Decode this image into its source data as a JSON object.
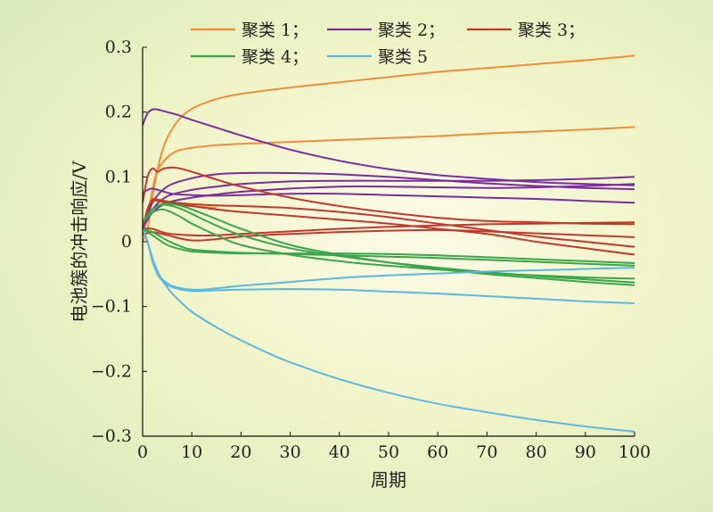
{
  "chart_data": {
    "type": "line",
    "title": "",
    "xlabel": "周期",
    "ylabel": "电池簇的冲击响应/V",
    "xlim": [
      0,
      100
    ],
    "ylim": [
      -0.3,
      0.3
    ],
    "x_ticks": [
      0,
      10,
      20,
      30,
      40,
      50,
      60,
      70,
      80,
      90,
      100
    ],
    "y_ticks": [
      -0.3,
      -0.2,
      -0.1,
      0,
      0.1,
      0.2,
      0.3
    ],
    "y_tick_labels": [
      "−0.3",
      "−0.2",
      "−0.1",
      "0",
      "0.1",
      "0.2",
      "0.3"
    ],
    "grid": false,
    "legend_position": "top",
    "legend": [
      {
        "label": "聚类 1；",
        "color": "#f28c3a"
      },
      {
        "label": "聚类 2；",
        "color": "#7a2e9e"
      },
      {
        "label": "聚类 3；",
        "color": "#c2382b"
      },
      {
        "label": "聚类 4；",
        "color": "#3aa64a"
      },
      {
        "label": "聚类 5",
        "color": "#5bb8e0"
      }
    ],
    "series": [
      {
        "cluster": 1,
        "color": "#f28c3a",
        "x": [
          0,
          1,
          2,
          3,
          4,
          5,
          7,
          10,
          15,
          20,
          30,
          40,
          50,
          60,
          70,
          80,
          90,
          100
        ],
        "y": [
          0,
          0.02,
          0.07,
          0.11,
          0.14,
          0.16,
          0.185,
          0.205,
          0.22,
          0.228,
          0.238,
          0.246,
          0.254,
          0.262,
          0.268,
          0.274,
          0.28,
          0.287
        ]
      },
      {
        "cluster": 1,
        "color": "#f28c3a",
        "x": [
          0,
          1,
          2,
          3,
          5,
          7,
          10,
          15,
          20,
          30,
          40,
          50,
          60,
          70,
          80,
          90,
          100
        ],
        "y": [
          0.01,
          0.04,
          0.08,
          0.11,
          0.13,
          0.14,
          0.145,
          0.149,
          0.151,
          0.154,
          0.157,
          0.16,
          0.163,
          0.167,
          0.17,
          0.173,
          0.177
        ]
      },
      {
        "cluster": 1,
        "color": "#f28c3a",
        "x": [
          0,
          1,
          2,
          3,
          5,
          7,
          10,
          15
        ],
        "y": [
          0.02,
          0.04,
          0.06,
          0.065,
          0.06,
          0.058,
          0.055,
          0.052
        ]
      },
      {
        "cluster": 2,
        "color": "#7a2e9e",
        "x": [
          0,
          1,
          2,
          3,
          4,
          5,
          7,
          10,
          15,
          20,
          30,
          40,
          50,
          60,
          70,
          80,
          90,
          100
        ],
        "y": [
          0.18,
          0.198,
          0.204,
          0.204,
          0.202,
          0.2,
          0.196,
          0.188,
          0.176,
          0.164,
          0.142,
          0.125,
          0.112,
          0.103,
          0.097,
          0.092,
          0.089,
          0.087
        ]
      },
      {
        "cluster": 2,
        "color": "#7a2e9e",
        "x": [
          0,
          2,
          5,
          10,
          15,
          20,
          30,
          40,
          50,
          60,
          70,
          80,
          90,
          100
        ],
        "y": [
          0.02,
          0.06,
          0.085,
          0.098,
          0.104,
          0.106,
          0.106,
          0.104,
          0.1,
          0.095,
          0.09,
          0.086,
          0.083,
          0.081
        ]
      },
      {
        "cluster": 2,
        "color": "#7a2e9e",
        "x": [
          0,
          2,
          5,
          10,
          15,
          20,
          30,
          40,
          50,
          60,
          70,
          80,
          90,
          100
        ],
        "y": [
          0.02,
          0.05,
          0.07,
          0.08,
          0.085,
          0.089,
          0.093,
          0.094,
          0.094,
          0.094,
          0.094,
          0.095,
          0.097,
          0.1
        ]
      },
      {
        "cluster": 2,
        "color": "#7a2e9e",
        "x": [
          0,
          2,
          5,
          10,
          15,
          20,
          30,
          40,
          50,
          60,
          70,
          80,
          90,
          100
        ],
        "y": [
          0.02,
          0.045,
          0.06,
          0.068,
          0.073,
          0.077,
          0.082,
          0.085,
          0.085,
          0.084,
          0.083,
          0.084,
          0.086,
          0.089
        ]
      },
      {
        "cluster": 2,
        "color": "#7a2e9e",
        "x": [
          0,
          1,
          2,
          4,
          6,
          10,
          15,
          20,
          30,
          40,
          50,
          60,
          70,
          80,
          90,
          100
        ],
        "y": [
          0.075,
          0.08,
          0.082,
          0.078,
          0.074,
          0.072,
          0.071,
          0.072,
          0.074,
          0.074,
          0.072,
          0.07,
          0.068,
          0.066,
          0.063,
          0.06
        ]
      },
      {
        "cluster": 3,
        "color": "#c2382b",
        "x": [
          0,
          1,
          2,
          3,
          4,
          5,
          7,
          10,
          15,
          20,
          30,
          40,
          50,
          60,
          70,
          80,
          90,
          100
        ],
        "y": [
          0.06,
          0.1,
          0.113,
          0.108,
          0.112,
          0.114,
          0.114,
          0.108,
          0.096,
          0.085,
          0.068,
          0.055,
          0.045,
          0.037,
          0.032,
          0.03,
          0.028,
          0.027
        ]
      },
      {
        "cluster": 3,
        "color": "#c2382b",
        "x": [
          0,
          1,
          2,
          3,
          5,
          7,
          10,
          15,
          20,
          30,
          40,
          50,
          60,
          70,
          80,
          90,
          100
        ],
        "y": [
          0.02,
          0.05,
          0.065,
          0.065,
          0.062,
          0.06,
          0.058,
          0.056,
          0.055,
          0.052,
          0.046,
          0.038,
          0.028,
          0.018,
          0.008,
          0,
          -0.008
        ]
      },
      {
        "cluster": 3,
        "color": "#c2382b",
        "x": [
          0,
          1,
          2,
          3,
          5,
          7,
          10,
          15,
          20,
          30,
          40,
          50,
          60,
          70,
          80,
          90,
          100
        ],
        "y": [
          0.02,
          0.05,
          0.063,
          0.063,
          0.06,
          0.058,
          0.055,
          0.05,
          0.046,
          0.04,
          0.034,
          0.028,
          0.02,
          0.012,
          0,
          -0.01,
          -0.02
        ]
      },
      {
        "cluster": 3,
        "color": "#c2382b",
        "x": [
          0,
          2,
          5,
          10,
          15,
          20,
          30,
          40,
          50,
          60,
          70,
          80,
          90,
          100
        ],
        "y": [
          0.02,
          0.02,
          0.013,
          0.01,
          0.01,
          0.012,
          0.016,
          0.02,
          0.023,
          0.025,
          0.027,
          0.028,
          0.029,
          0.03
        ]
      },
      {
        "cluster": 3,
        "color": "#c2382b",
        "x": [
          0,
          2,
          5,
          10,
          15,
          20,
          30,
          40,
          50,
          60,
          70,
          80,
          90,
          100
        ],
        "y": [
          0.01,
          0.015,
          0.01,
          0.002,
          0.004,
          0.008,
          0.012,
          0.015,
          0.017,
          0.018,
          0.016,
          0.013,
          0.01,
          0.007
        ]
      },
      {
        "cluster": 4,
        "color": "#3aa64a",
        "x": [
          0,
          2,
          4,
          6,
          8,
          10,
          15,
          20,
          30,
          40,
          50,
          60,
          70,
          80,
          90,
          100
        ],
        "y": [
          0.03,
          0.05,
          0.058,
          0.058,
          0.055,
          0.05,
          0.035,
          0.02,
          -0.005,
          -0.02,
          -0.032,
          -0.042,
          -0.05,
          -0.056,
          -0.062,
          -0.067
        ]
      },
      {
        "cluster": 4,
        "color": "#3aa64a",
        "x": [
          0,
          2,
          4,
          6,
          8,
          10,
          15,
          20,
          30,
          40,
          50,
          60,
          70,
          80,
          90,
          100
        ],
        "y": [
          0.03,
          0.05,
          0.057,
          0.055,
          0.05,
          0.043,
          0.025,
          0.01,
          -0.01,
          -0.022,
          -0.032,
          -0.04,
          -0.047,
          -0.053,
          -0.058,
          -0.063
        ]
      },
      {
        "cluster": 4,
        "color": "#3aa64a",
        "x": [
          0,
          2,
          4,
          6,
          8,
          10,
          15,
          20,
          30,
          40,
          50,
          60,
          70,
          80,
          90,
          100
        ],
        "y": [
          0.03,
          0.045,
          0.05,
          0.045,
          0.037,
          0.028,
          0.01,
          -0.005,
          -0.02,
          -0.03,
          -0.037,
          -0.043,
          -0.048,
          -0.052,
          -0.055,
          -0.057
        ]
      },
      {
        "cluster": 4,
        "color": "#3aa64a",
        "x": [
          0,
          2,
          5,
          8,
          10,
          15,
          20,
          30,
          40,
          50,
          60,
          70,
          80,
          90,
          100
        ],
        "y": [
          0.02,
          0.01,
          -0.005,
          -0.012,
          -0.015,
          -0.017,
          -0.018,
          -0.018,
          -0.018,
          -0.019,
          -0.021,
          -0.024,
          -0.027,
          -0.03,
          -0.033
        ]
      },
      {
        "cluster": 4,
        "color": "#3aa64a",
        "x": [
          0,
          2,
          5,
          8,
          10,
          15,
          20,
          30,
          40,
          50,
          60,
          70,
          80,
          90,
          100
        ],
        "y": [
          0.02,
          0.015,
          0.002,
          -0.008,
          -0.012,
          -0.015,
          -0.017,
          -0.019,
          -0.021,
          -0.023,
          -0.025,
          -0.028,
          -0.031,
          -0.034,
          -0.037
        ]
      },
      {
        "cluster": 5,
        "color": "#5bb8e0",
        "x": [
          0,
          1,
          2,
          3,
          4,
          5,
          6,
          8,
          10,
          15,
          20,
          25,
          30,
          40,
          50,
          60,
          70,
          80,
          90,
          100
        ],
        "y": [
          0.02,
          0,
          -0.025,
          -0.045,
          -0.06,
          -0.07,
          -0.08,
          -0.095,
          -0.108,
          -0.132,
          -0.152,
          -0.17,
          -0.186,
          -0.212,
          -0.233,
          -0.25,
          -0.263,
          -0.275,
          -0.285,
          -0.293
        ]
      },
      {
        "cluster": 5,
        "color": "#5bb8e0",
        "x": [
          0,
          1,
          2,
          3,
          4,
          5,
          6,
          8,
          10,
          12,
          15,
          20,
          30,
          40,
          50,
          60,
          70,
          80,
          90,
          100
        ],
        "y": [
          0.02,
          0,
          -0.03,
          -0.05,
          -0.06,
          -0.066,
          -0.07,
          -0.074,
          -0.076,
          -0.076,
          -0.075,
          -0.074,
          -0.073,
          -0.074,
          -0.077,
          -0.08,
          -0.084,
          -0.088,
          -0.092,
          -0.095
        ]
      },
      {
        "cluster": 5,
        "color": "#5bb8e0",
        "x": [
          0,
          1,
          2,
          3,
          4,
          5,
          6,
          8,
          10,
          12,
          15,
          20,
          30,
          40,
          50,
          60,
          70,
          80,
          90,
          100
        ],
        "y": [
          0.02,
          0,
          -0.028,
          -0.048,
          -0.058,
          -0.064,
          -0.068,
          -0.072,
          -0.074,
          -0.074,
          -0.072,
          -0.068,
          -0.062,
          -0.056,
          -0.052,
          -0.049,
          -0.046,
          -0.044,
          -0.042,
          -0.04
        ]
      }
    ]
  }
}
